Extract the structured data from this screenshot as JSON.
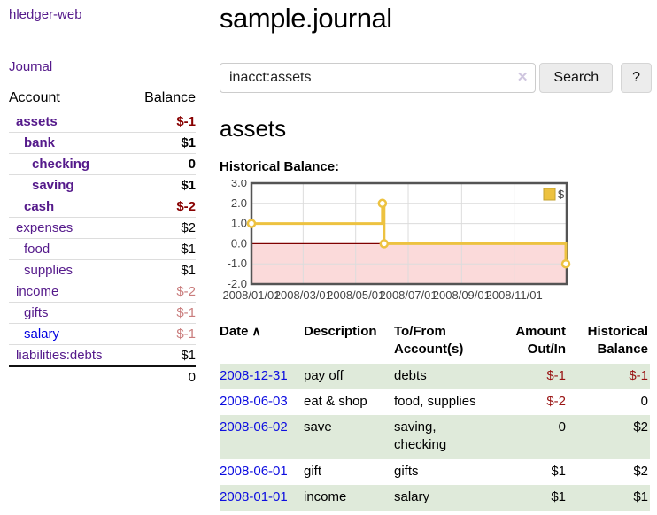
{
  "colors": {
    "link_purple": "#551a8b",
    "link_blue": "#0d0de0",
    "negative_strong": "#880000",
    "negative_muted": "#c97c7c",
    "row_stripe_green": "#dfeada",
    "chart_series_amber": "#edc240",
    "chart_negative_fill": "#fbdada",
    "chart_zero_line": "#800000"
  },
  "sidebar": {
    "app_title": "hledger-web",
    "journal_link": "Journal",
    "table": {
      "headers": {
        "account": "Account",
        "balance": "Balance"
      },
      "rows": [
        {
          "account": "assets",
          "balance": "$-1",
          "indent": 0,
          "bold": true,
          "balance_style": "neg-strong",
          "link": "purple"
        },
        {
          "account": "bank",
          "balance": "$1",
          "indent": 1,
          "bold": true,
          "balance_style": "pos",
          "link": "purple"
        },
        {
          "account": "checking",
          "balance": "0",
          "indent": 2,
          "bold": true,
          "balance_style": "pos",
          "link": "purple"
        },
        {
          "account": "saving",
          "balance": "$1",
          "indent": 2,
          "bold": true,
          "balance_style": "pos",
          "link": "purple"
        },
        {
          "account": "cash",
          "balance": "$-2",
          "indent": 1,
          "bold": true,
          "balance_style": "neg-strong",
          "link": "purple"
        },
        {
          "account": "expenses",
          "balance": "$2",
          "indent": 0,
          "bold": false,
          "balance_style": "pos",
          "link": "purple"
        },
        {
          "account": "food",
          "balance": "$1",
          "indent": 1,
          "bold": false,
          "balance_style": "pos",
          "link": "purple"
        },
        {
          "account": "supplies",
          "balance": "$1",
          "indent": 1,
          "bold": false,
          "balance_style": "pos",
          "link": "purple"
        },
        {
          "account": "income",
          "balance": "$-2",
          "indent": 0,
          "bold": false,
          "balance_style": "neg-muted",
          "link": "purple"
        },
        {
          "account": "gifts",
          "balance": "$-1",
          "indent": 1,
          "bold": false,
          "balance_style": "neg-muted",
          "link": "purple"
        },
        {
          "account": "salary",
          "balance": "$-1",
          "indent": 1,
          "bold": false,
          "balance_style": "neg-muted",
          "link": "blue"
        },
        {
          "account": "liabilities:debts",
          "balance": "$1",
          "indent": 0,
          "bold": false,
          "balance_style": "pos",
          "link": "purple"
        }
      ],
      "total": "0"
    }
  },
  "main": {
    "title": "sample.journal",
    "search": {
      "value": "inacct:assets",
      "clear_icon": "✕",
      "search_button": "Search",
      "help_button": "?"
    },
    "account_heading": "assets",
    "chart_title": "Historical Balance:"
  },
  "chart_data": {
    "type": "line",
    "step": true,
    "title": "Historical Balance",
    "series": [
      {
        "name": "$",
        "color": "#edc240",
        "points": [
          [
            "2008-01-01",
            1
          ],
          [
            "2008-06-01",
            2
          ],
          [
            "2008-06-03",
            0
          ],
          [
            "2008-12-31",
            -1
          ]
        ]
      }
    ],
    "ylim": [
      -2,
      3
    ],
    "y_ticks": [
      "3.0",
      "2.0",
      "1.0",
      "0.0",
      "-1.0",
      "-2.0"
    ],
    "x_ticks": [
      "2008/01/01",
      "2008/03/01",
      "2008/05/01",
      "2008/07/01",
      "2008/09/01",
      "2008/11/01"
    ],
    "x_range": [
      "2008-01-01",
      "2009-01-01"
    ],
    "legend": "$",
    "legend_position": "top-right",
    "grid": true
  },
  "register": {
    "headers": {
      "date": "Date",
      "sort_icon": "∧",
      "description": "Description",
      "accounts": "To/From Account(s)",
      "amount": "Amount Out/In",
      "balance": "Historical Balance"
    },
    "rows": [
      {
        "date": "2008-12-31",
        "description": "pay off",
        "accounts": "debts",
        "amount": "$-1",
        "amount_neg": true,
        "balance": "$-1",
        "balance_neg": true
      },
      {
        "date": "2008-06-03",
        "description": "eat & shop",
        "accounts": "food, supplies",
        "amount": "$-2",
        "amount_neg": true,
        "balance": "0",
        "balance_neg": false
      },
      {
        "date": "2008-06-02",
        "description": "save",
        "accounts": "saving, checking",
        "amount": "0",
        "amount_neg": false,
        "balance": "$2",
        "balance_neg": false
      },
      {
        "date": "2008-06-01",
        "description": "gift",
        "accounts": "gifts",
        "amount": "$1",
        "amount_neg": false,
        "balance": "$2",
        "balance_neg": false
      },
      {
        "date": "2008-01-01",
        "description": "income",
        "accounts": "salary",
        "amount": "$1",
        "amount_neg": false,
        "balance": "$1",
        "balance_neg": false
      }
    ]
  }
}
